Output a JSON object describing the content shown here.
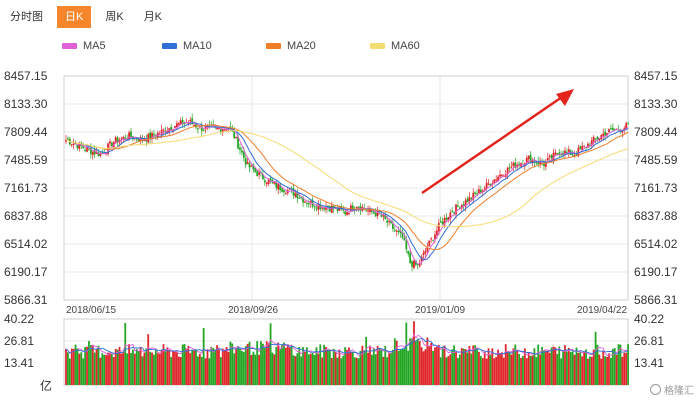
{
  "tabs": [
    {
      "label": "分时图",
      "active": false
    },
    {
      "label": "日K",
      "active": true
    },
    {
      "label": "周K",
      "active": false
    },
    {
      "label": "月K",
      "active": false
    }
  ],
  "legend": [
    {
      "label": "MA5",
      "color": "#e060d6"
    },
    {
      "label": "MA10",
      "color": "#2f6fd6"
    },
    {
      "label": "MA20",
      "color": "#f07d2a"
    },
    {
      "label": "MA60",
      "color": "#f3dc72"
    }
  ],
  "watermark": "格隆汇",
  "chart_data": [
    {
      "type": "candlestick",
      "y_ticks": [
        "8457.15",
        "8133.30",
        "7809.44",
        "7485.59",
        "7161.73",
        "6837.88",
        "6514.02",
        "6190.17",
        "5866.31"
      ],
      "ylim": [
        5866.31,
        8457.15
      ],
      "x_labels": [
        "2018/06/15",
        "2018/09/26",
        "2019/01/09",
        "2019/04/22"
      ],
      "grid": true,
      "close_trend": [
        [
          0,
          7720
        ],
        [
          10,
          7620
        ],
        [
          18,
          7550
        ],
        [
          25,
          7700
        ],
        [
          33,
          7760
        ],
        [
          40,
          7720
        ],
        [
          48,
          7790
        ],
        [
          56,
          7880
        ],
        [
          64,
          7930
        ],
        [
          70,
          7860
        ],
        [
          78,
          7840
        ],
        [
          85,
          7870
        ],
        [
          88,
          7760
        ],
        [
          95,
          7420
        ],
        [
          102,
          7300
        ],
        [
          108,
          7210
        ],
        [
          114,
          7150
        ],
        [
          120,
          7100
        ],
        [
          126,
          7000
        ],
        [
          134,
          6950
        ],
        [
          140,
          6930
        ],
        [
          146,
          6880
        ],
        [
          152,
          6970
        ],
        [
          158,
          6900
        ],
        [
          164,
          6850
        ],
        [
          170,
          6720
        ],
        [
          176,
          6580
        ],
        [
          180,
          6300
        ],
        [
          184,
          6260
        ],
        [
          190,
          6520
        ],
        [
          196,
          6750
        ],
        [
          202,
          6900
        ],
        [
          210,
          7020
        ],
        [
          218,
          7150
        ],
        [
          226,
          7300
        ],
        [
          234,
          7420
        ],
        [
          242,
          7500
        ],
        [
          250,
          7440
        ],
        [
          258,
          7580
        ],
        [
          266,
          7560
        ],
        [
          274,
          7680
        ],
        [
          282,
          7800
        ],
        [
          290,
          7850
        ],
        [
          294,
          7880
        ]
      ],
      "annotation": "red trend arrow pointing up-right"
    },
    {
      "type": "bar",
      "name": "volume",
      "y_ticks": [
        "40.22",
        "26.81",
        "13.41"
      ],
      "unit": "亿",
      "ylim": [
        0,
        40.22
      ]
    }
  ]
}
